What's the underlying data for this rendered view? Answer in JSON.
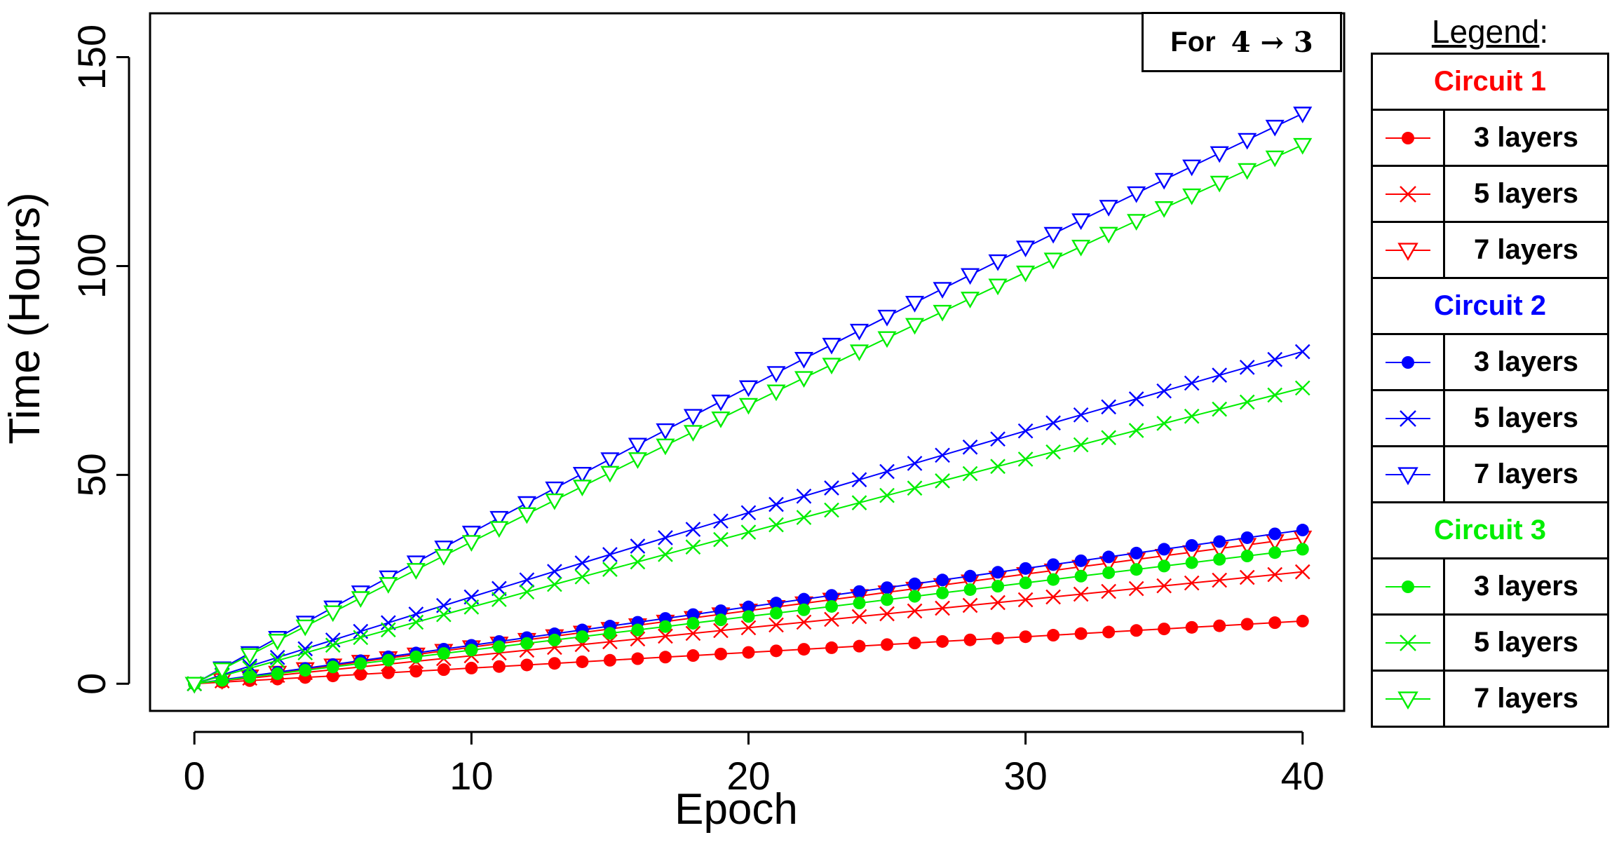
{
  "chart_data": {
    "type": "line",
    "title": "",
    "xlabel": "Epoch",
    "ylabel": "Time (Hours)",
    "xlim": [
      -1.6,
      41.5
    ],
    "ylim": [
      -6.5,
      160.5
    ],
    "xticks": [
      0,
      10,
      20,
      30,
      40
    ],
    "yticks": [
      0,
      50,
      100,
      150
    ],
    "annotation": {
      "label": "For",
      "math": "4 → 3"
    },
    "legend": {
      "title": "Legend",
      "title_suffix": ":",
      "placement": "right-outside",
      "groups": [
        {
          "name": "Circuit 1",
          "color": "#ff0000",
          "items": [
            {
              "label": "3 layers",
              "marker": "circle"
            },
            {
              "label": "5 layers",
              "marker": "cross"
            },
            {
              "label": "7 layers",
              "marker": "triangle-down"
            }
          ]
        },
        {
          "name": "Circuit 2",
          "color": "#0000ff",
          "items": [
            {
              "label": "3 layers",
              "marker": "circle"
            },
            {
              "label": "5 layers",
              "marker": "cross"
            },
            {
              "label": "7 layers",
              "marker": "triangle-down"
            }
          ]
        },
        {
          "name": "Circuit 3",
          "color": "#00ee00",
          "items": [
            {
              "label": "3 layers",
              "marker": "circle"
            },
            {
              "label": "5 layers",
              "marker": "cross"
            },
            {
              "label": "7 layers",
              "marker": "triangle-down"
            }
          ]
        }
      ]
    },
    "x_range": {
      "start": 0,
      "end": 40,
      "step": 1
    },
    "series": [
      {
        "name": "Circuit 1 - 3 layers",
        "color": "#ff0000",
        "marker": "circle",
        "start": 0,
        "end": 15.0,
        "curve": 0
      },
      {
        "name": "Circuit 1 - 5 layers",
        "color": "#ff0000",
        "marker": "cross",
        "start": 0,
        "end": 26.8,
        "curve": 0
      },
      {
        "name": "Circuit 1 - 7 layers",
        "color": "#ff0000",
        "marker": "triangle-down",
        "start": 0,
        "end": 35.0,
        "curve": 0
      },
      {
        "name": "Circuit 2 - 3 layers",
        "color": "#0000ff",
        "marker": "circle",
        "start": 0,
        "end": 36.8,
        "curve": 0
      },
      {
        "name": "Circuit 2 - 5 layers",
        "color": "#0000ff",
        "marker": "cross",
        "start": 0,
        "end": 79.5,
        "curve": 0.06
      },
      {
        "name": "Circuit 2 - 7 layers",
        "color": "#0000ff",
        "marker": "triangle-down",
        "start": 0,
        "end": 136.5,
        "curve": 0.08
      },
      {
        "name": "Circuit 3 - 3 layers",
        "color": "#00ee00",
        "marker": "circle",
        "start": 0,
        "end": 32.2,
        "curve": 0
      },
      {
        "name": "Circuit 3 - 5 layers",
        "color": "#00ee00",
        "marker": "cross",
        "start": 0,
        "end": 70.8,
        "curve": 0.05
      },
      {
        "name": "Circuit 3 - 7 layers",
        "color": "#00ee00",
        "marker": "triangle-down",
        "start": 0,
        "end": 129.0,
        "curve": 0.07
      }
    ]
  }
}
